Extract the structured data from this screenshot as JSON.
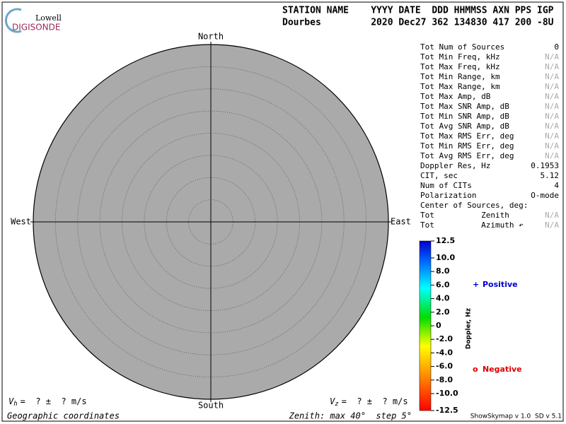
{
  "chart_data": {
    "type": "polar",
    "logo": {
      "top": "Lowell",
      "bottom": "DIGISONDE"
    },
    "header": {
      "labels": "STATION NAME    YYYY DATE  DDD HHMMSS AXN PPS IGP",
      "values": "Dourbes         2020 Dec27 362 134830 417 200 -8U"
    },
    "directions": {
      "north": "North",
      "south": "South",
      "east": "East",
      "west": "West"
    },
    "rlim": [
      0,
      40
    ],
    "rticks": [
      5,
      10,
      15,
      20,
      25,
      30,
      35,
      40
    ],
    "stats": [
      {
        "label": "Tot Num of Sources",
        "value": "0"
      },
      {
        "label": "Tot Min Freq, kHz",
        "value": "N/A"
      },
      {
        "label": "Tot Max Freq, kHz",
        "value": "N/A"
      },
      {
        "label": "Tot Min Range, km",
        "value": "N/A"
      },
      {
        "label": "Tot Max Range, km",
        "value": "N/A"
      },
      {
        "label": "Tot Max Amp, dB",
        "value": "N/A"
      },
      {
        "label": "Tot Max SNR Amp, dB",
        "value": "N/A"
      },
      {
        "label": "Tot Min SNR Amp, dB",
        "value": "N/A"
      },
      {
        "label": "Tot Avg SNR Amp, dB",
        "value": "N/A"
      },
      {
        "label": "Tot Max RMS Err, deg",
        "value": "N/A"
      },
      {
        "label": "Tot Min RMS Err, deg",
        "value": "N/A"
      },
      {
        "label": "Tot Avg RMS Err, deg",
        "value": "N/A"
      },
      {
        "label": "Doppler Res, Hz",
        "value": "0.1953"
      },
      {
        "label": "CIT, sec",
        "value": "5.12"
      },
      {
        "label": "Num of CITs",
        "value": "4"
      },
      {
        "label": "Polarization",
        "value": "O-mode"
      },
      {
        "label": "Center of Sources, deg:"
      },
      {
        "label": "Tot          Zenith",
        "value": "N/A"
      },
      {
        "label": "Tot          Azimuth ↶",
        "value": "N/A"
      }
    ],
    "colorbar": {
      "label": "Doppler, Hz",
      "clim": [
        -12.5,
        12.5
      ],
      "ticks": [
        12.5,
        {
          "value": 10,
          "label": "10.0"
        },
        {
          "value": 8,
          "label": "8.0"
        },
        {
          "value": 6,
          "label": "6.0"
        },
        {
          "value": 4,
          "label": "4.0"
        },
        {
          "value": 2,
          "label": "2.0"
        },
        0,
        {
          "value": -2,
          "label": "-2.0"
        },
        {
          "value": -4,
          "label": "-4.0"
        },
        {
          "value": -6,
          "label": "-6.0"
        },
        {
          "value": -8,
          "label": "-8.0"
        },
        {
          "value": -10,
          "label": "-10.0"
        },
        -12.5
      ]
    },
    "legend": [
      {
        "symbol": "+",
        "name": "Positive",
        "color": "#0000cc"
      },
      {
        "symbol": "o",
        "name": "Negative",
        "color": "#dd0000"
      }
    ],
    "velocity": {
      "h": {
        "symbol": "V",
        "sub": "h",
        "text": "=  ? ±  ? m/s"
      },
      "z": {
        "symbol": "V",
        "sub": "z",
        "text": "=  ? ±  ? m/s"
      }
    },
    "footer": {
      "left": "Geographic coordinates",
      "center": "Zenith: max 40°  step 5°",
      "right": "ShowSkymap v 1.0  SD v 5.1"
    }
  }
}
